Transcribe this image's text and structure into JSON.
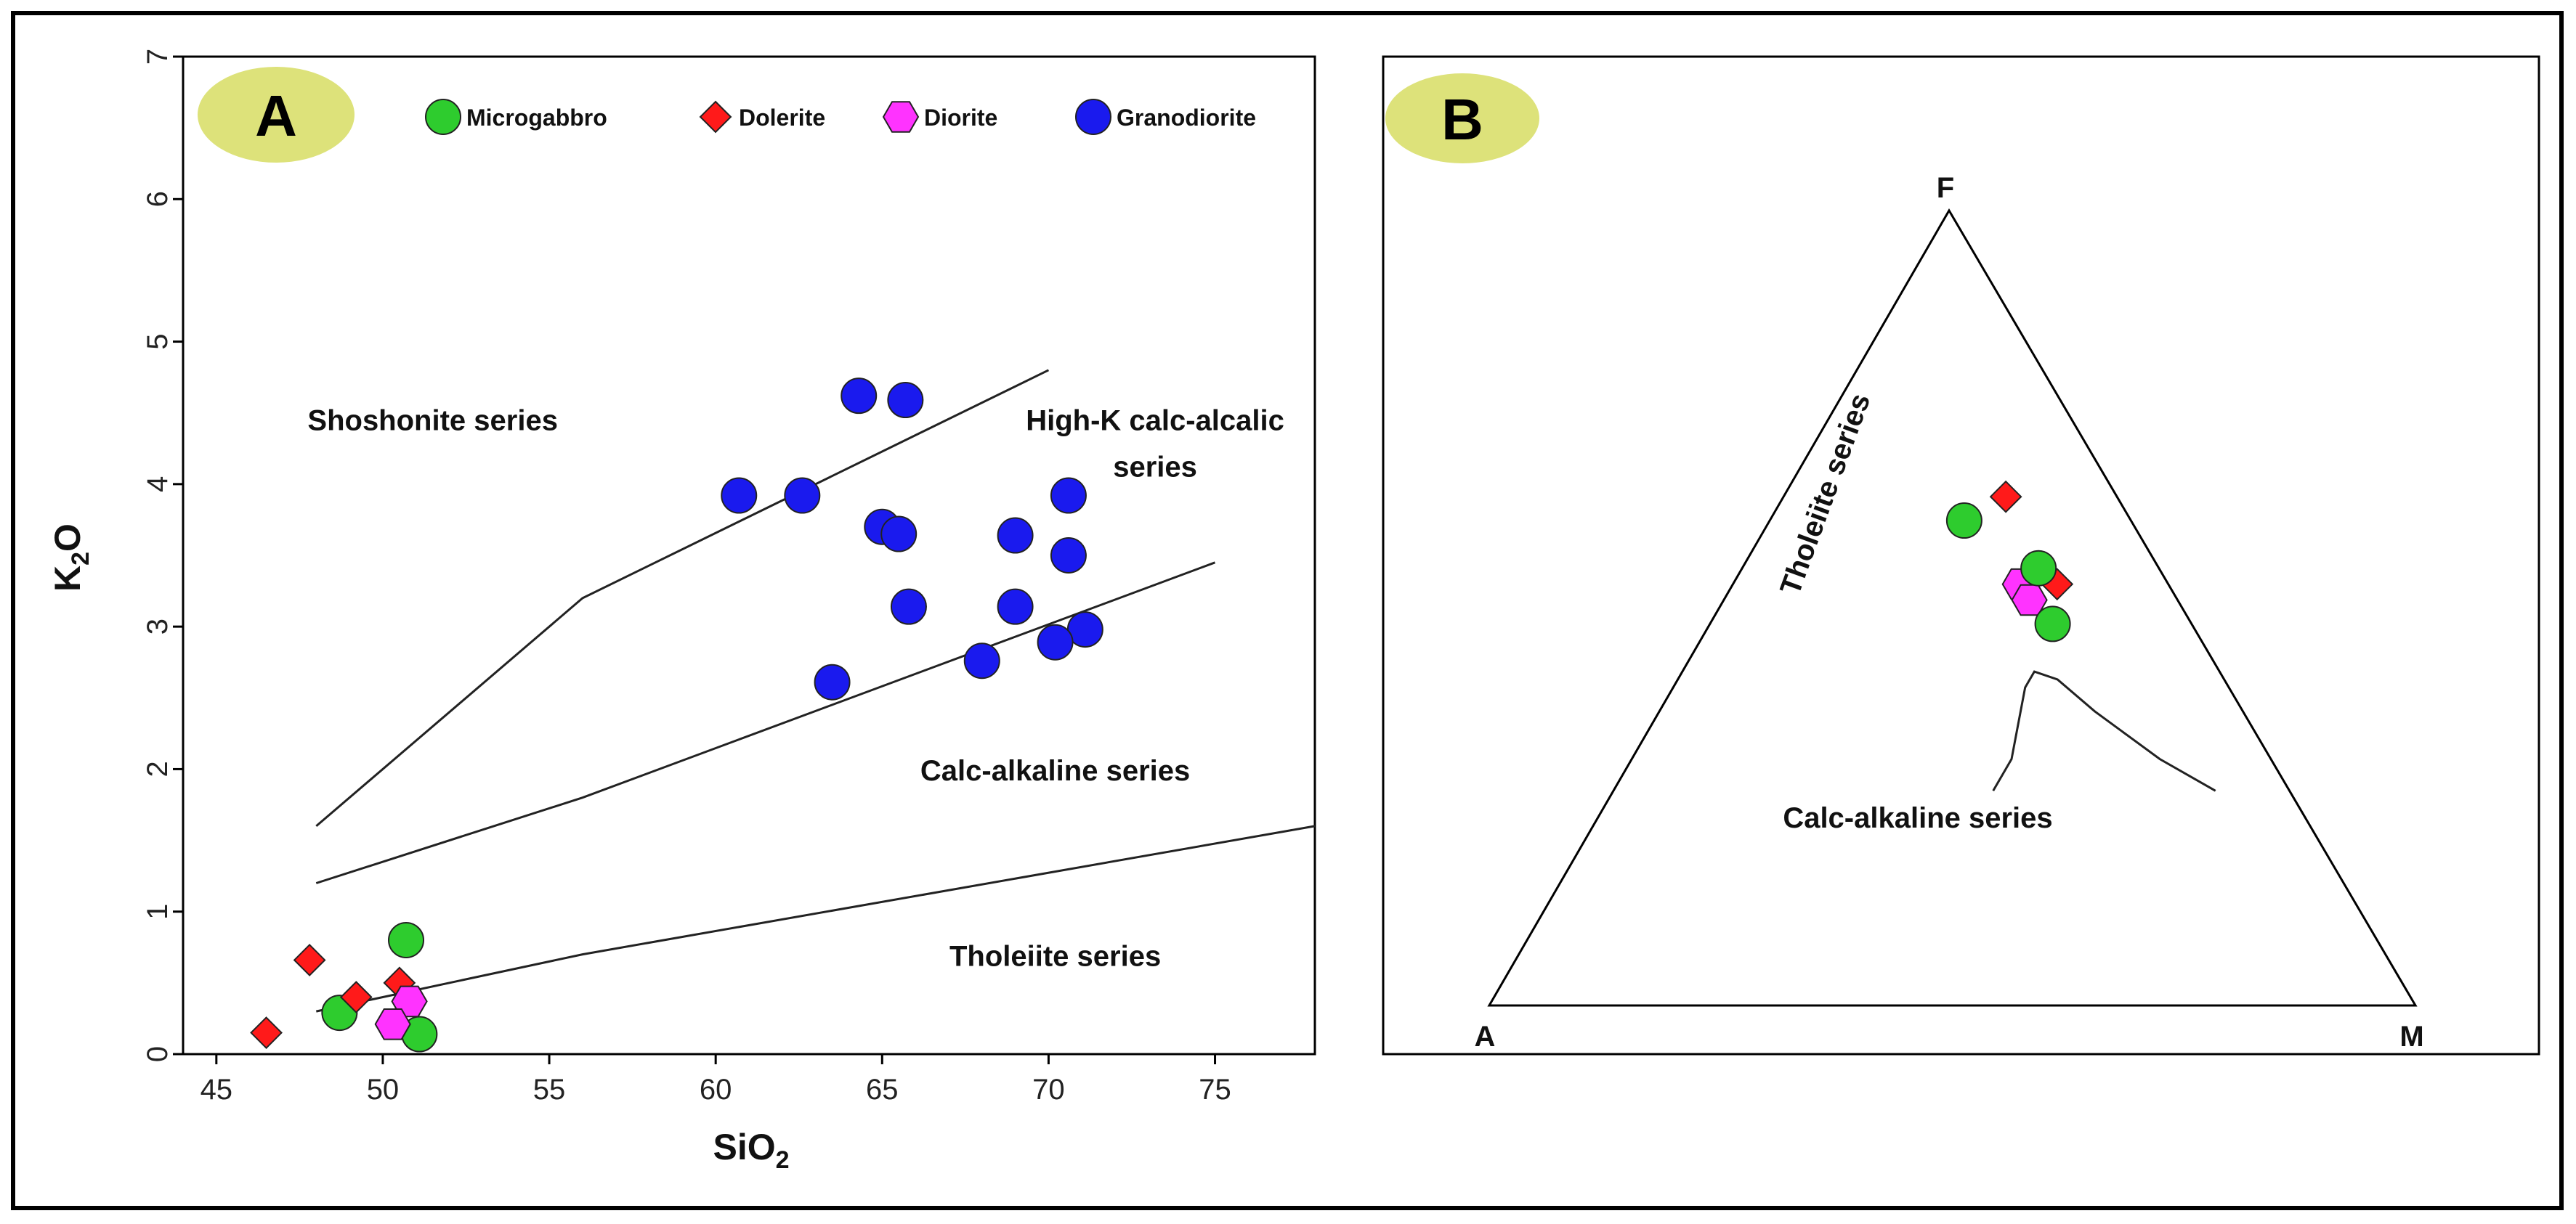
{
  "chart_data": [
    {
      "type": "scatter",
      "panel_label": "A",
      "xlabel_base": "SiO",
      "xlabel_sub": "2",
      "ylabel_base": "K",
      "ylabel_sub": "2",
      "ylabel_tail": "O",
      "xlim": [
        44,
        78
      ],
      "ylim": [
        0,
        7
      ],
      "x_ticks": [
        45,
        50,
        55,
        60,
        65,
        70,
        75
      ],
      "y_ticks": [
        0,
        1,
        2,
        3,
        4,
        5,
        6,
        7
      ],
      "legend": [
        {
          "label": "Microgabbro",
          "marker": "circle",
          "color": "#2ecc2e"
        },
        {
          "label": "Dolerite",
          "marker": "diamond",
          "color": "#ff1a1a"
        },
        {
          "label": "Diorite",
          "marker": "hexagon",
          "color": "#ff33ff"
        },
        {
          "label": "Granodiorite",
          "marker": "circle",
          "color": "#1a1aee"
        }
      ],
      "boundaries": [
        {
          "name": "shoshonite-boundary",
          "points": [
            [
              48,
              1.6
            ],
            [
              56,
              3.2
            ],
            [
              70,
              4.8
            ]
          ]
        },
        {
          "name": "high-k-boundary",
          "points": [
            [
              48,
              1.2
            ],
            [
              56,
              1.8
            ],
            [
              75,
              3.45
            ]
          ]
        },
        {
          "name": "tholeiite-boundary",
          "points": [
            [
              48,
              0.3
            ],
            [
              56,
              0.7
            ],
            [
              78,
              1.6
            ]
          ]
        }
      ],
      "region_labels": [
        {
          "lines": [
            "Shoshonite series"
          ],
          "x": 51.5,
          "y": 4.38,
          "anchor": "middle"
        },
        {
          "lines": [
            "High-K calc-alcalic",
            "series"
          ],
          "x": 73.2,
          "y": 4.38,
          "anchor": "middle"
        },
        {
          "lines": [
            "Calc-alkaline series"
          ],
          "x": 70.2,
          "y": 1.92,
          "anchor": "middle"
        },
        {
          "lines": [
            "Tholeiite series"
          ],
          "x": 70.2,
          "y": 0.62,
          "anchor": "middle"
        }
      ],
      "series": [
        {
          "name": "Microgabbro",
          "marker": "circle",
          "color": "#2ecc2e",
          "x": [
            50.7,
            48.7,
            51.1
          ],
          "y": [
            0.8,
            0.29,
            0.14
          ]
        },
        {
          "name": "Dolerite",
          "marker": "diamond",
          "color": "#ff1a1a",
          "x": [
            47.8,
            49.2,
            50.5,
            46.5
          ],
          "y": [
            0.66,
            0.4,
            0.5,
            0.15
          ]
        },
        {
          "name": "Diorite",
          "marker": "hexagon",
          "color": "#ff33ff",
          "x": [
            50.8,
            50.3
          ],
          "y": [
            0.37,
            0.21
          ]
        },
        {
          "name": "Granodiorite",
          "marker": "circle",
          "color": "#1a1aee",
          "x": [
            64.3,
            65.7,
            60.7,
            62.6,
            65.0,
            65.5,
            70.6,
            69.0,
            70.6,
            65.8,
            69.0,
            71.1,
            70.2,
            63.5,
            68.0
          ],
          "y": [
            4.62,
            4.59,
            3.92,
            3.92,
            3.7,
            3.65,
            3.92,
            3.64,
            3.5,
            3.14,
            3.14,
            2.98,
            2.89,
            2.61,
            2.76
          ]
        }
      ]
    },
    {
      "type": "ternary",
      "panel_label": "B",
      "vertices": {
        "top": "F",
        "left": "A",
        "right": "M"
      },
      "region_labels": {
        "upper": "Tholeiite series",
        "lower": "Calc-alkaline series"
      },
      "boundary_curve_AFM": [
        [
          0.32,
          0.27,
          0.41
        ],
        [
          0.28,
          0.31,
          0.41
        ],
        [
          0.22,
          0.4,
          0.38
        ],
        [
          0.2,
          0.42,
          0.38
        ],
        [
          0.18,
          0.41,
          0.41
        ],
        [
          0.16,
          0.37,
          0.47
        ],
        [
          0.12,
          0.31,
          0.57
        ],
        [
          0.08,
          0.27,
          0.65
        ]
      ],
      "series": [
        {
          "name": "Microgabbro",
          "marker": "circle",
          "color": "#2ecc2e",
          "AFM": [
            [
              0.18,
              0.61,
              0.21
            ],
            [
              0.13,
              0.55,
              0.32
            ],
            [
              0.15,
              0.48,
              0.37
            ]
          ]
        },
        {
          "name": "Dolerite",
          "marker": "diamond",
          "color": "#ff1a1a",
          "AFM": [
            [
              0.12,
              0.64,
              0.24
            ],
            [
              0.12,
              0.53,
              0.35
            ]
          ]
        },
        {
          "name": "Diorite",
          "marker": "hexagon",
          "color": "#ff33ff",
          "AFM": [
            [
              0.16,
              0.53,
              0.31
            ],
            [
              0.16,
              0.51,
              0.33
            ]
          ]
        }
      ]
    }
  ]
}
